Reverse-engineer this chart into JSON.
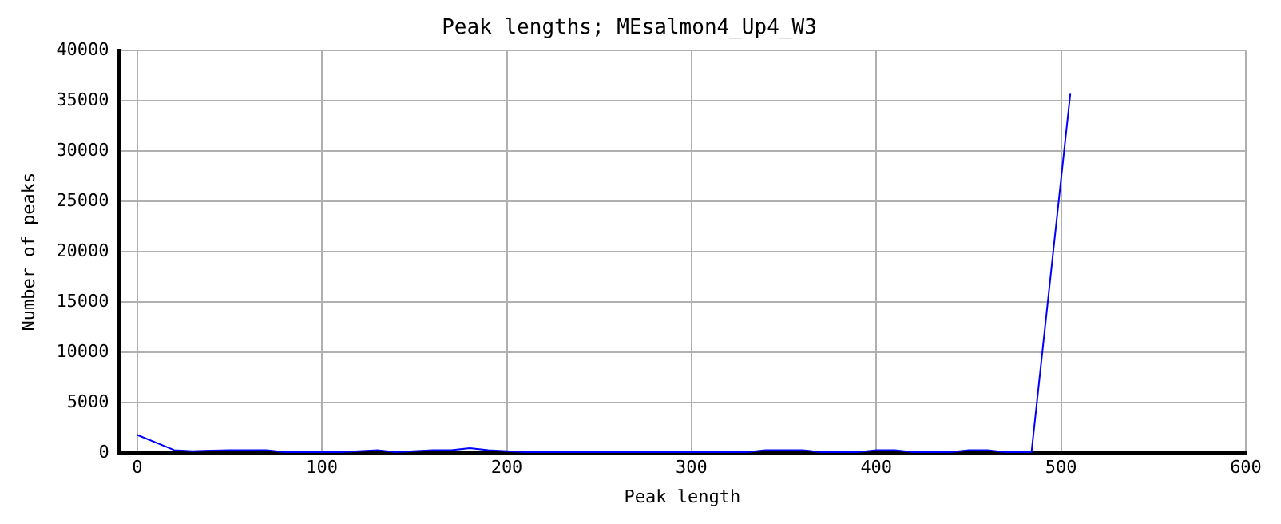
{
  "chart_data": {
    "type": "line",
    "title": "Peak lengths; MEsalmon4_Up4_W3",
    "xlabel": "Peak length",
    "ylabel": "Number of peaks",
    "x": [
      0,
      20,
      30,
      50,
      70,
      80,
      110,
      130,
      140,
      160,
      170,
      180,
      190,
      200,
      210,
      230,
      240,
      330,
      340,
      360,
      370,
      390,
      400,
      410,
      420,
      440,
      450,
      460,
      470,
      484,
      505
    ],
    "series": [
      {
        "color": "#0000ff",
        "values": [
          1800,
          300,
          200,
          300,
          300,
          100,
          100,
          300,
          100,
          300,
          300,
          500,
          300,
          200,
          100,
          100,
          100,
          100,
          300,
          300,
          100,
          100,
          300,
          300,
          100,
          100,
          300,
          300,
          100,
          100,
          35700
        ]
      }
    ],
    "xlim": [
      -10,
      600
    ],
    "xticks": [
      0,
      100,
      200,
      300,
      400,
      500,
      600
    ],
    "ylim": [
      0,
      40000
    ],
    "yticks": [
      0,
      5000,
      10000,
      15000,
      20000,
      25000,
      30000,
      35000,
      40000
    ],
    "grid": true,
    "legend": false,
    "marker": "none",
    "line_style": "solid"
  }
}
